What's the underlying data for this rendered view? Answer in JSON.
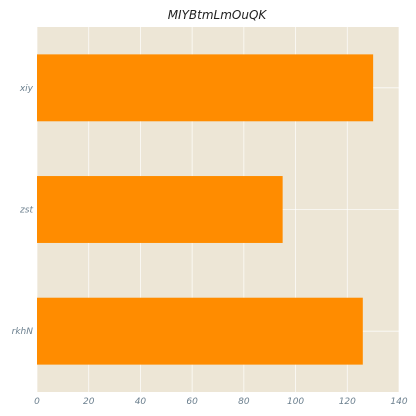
{
  "chart_data": {
    "type": "bar",
    "orientation": "horizontal",
    "title": "MIYBtmLmOuQK",
    "xlabel": "",
    "ylabel": "",
    "categories": [
      "xiy",
      "zst",
      "rkhN"
    ],
    "values": [
      130,
      95,
      126
    ],
    "xlim": [
      0,
      140
    ],
    "xticks": [
      0,
      20,
      40,
      60,
      80,
      100,
      120,
      140
    ],
    "grid": true,
    "bar_color": "#ff8c00",
    "background_color": "#ede6d6"
  }
}
